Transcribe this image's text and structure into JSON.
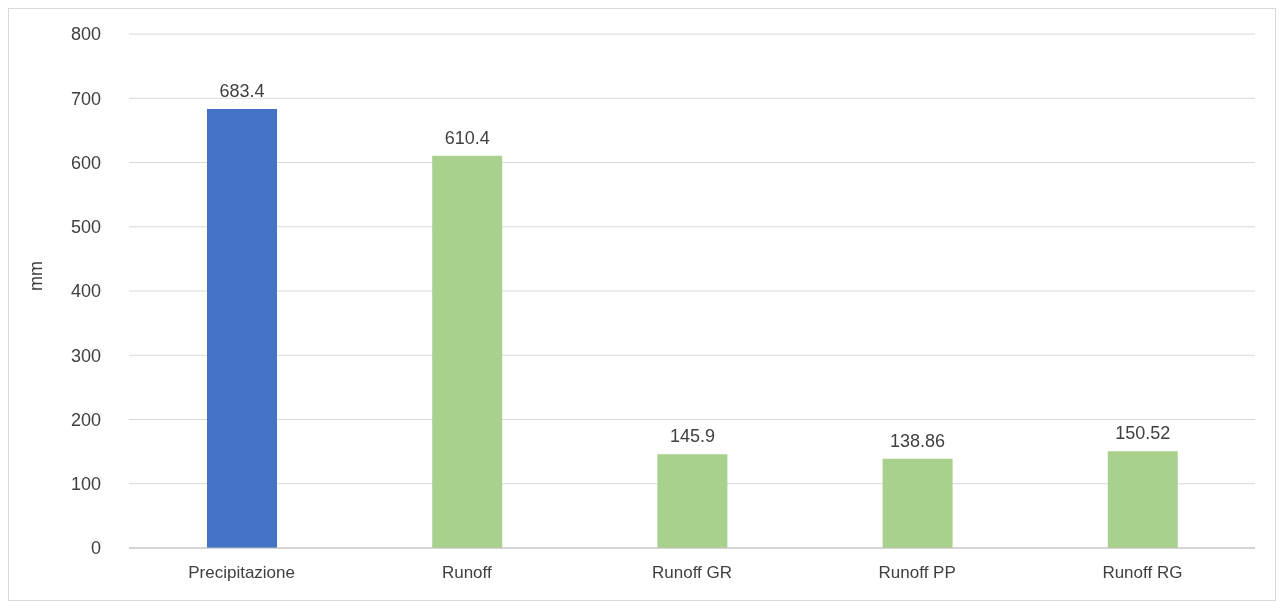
{
  "chart_data": {
    "type": "bar",
    "ylabel": "mm",
    "categories": [
      "Precipitazione",
      "Runoff",
      "Runoff GR",
      "Runoff PP",
      "Runoff RG"
    ],
    "values": [
      683.4,
      610.4,
      145.9,
      138.86,
      150.52
    ],
    "colors": [
      "#4472c4",
      "#a9d18e",
      "#a9d18e",
      "#a9d18e",
      "#a9d18e"
    ],
    "ylim": [
      0,
      800
    ],
    "yticks": [
      0,
      100,
      200,
      300,
      400,
      500,
      600,
      700,
      800
    ],
    "grid": "y",
    "data_labels": true,
    "legend": false
  }
}
